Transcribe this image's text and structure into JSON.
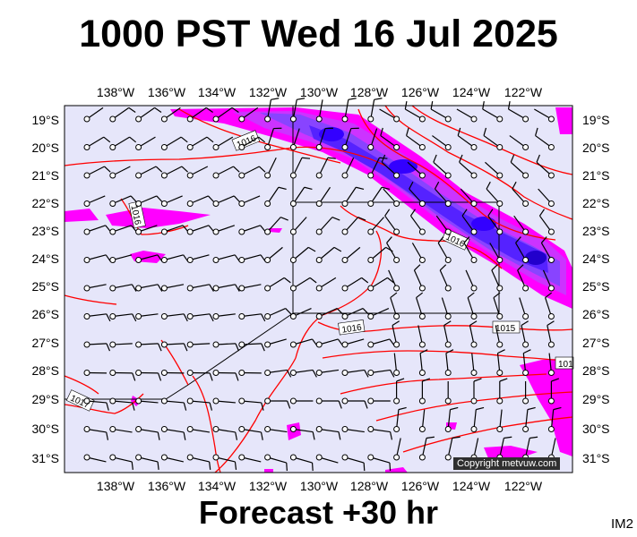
{
  "title": "1000 PST Wed 16 Jul 2025",
  "forecast_label": "Forecast +30 hr",
  "region_code": "IM2",
  "copyright": "Copyright metvuw.com",
  "longitude_ticks": [
    "138°W",
    "136°W",
    "134°W",
    "132°W",
    "130°W",
    "128°W",
    "126°W",
    "124°W",
    "122°W"
  ],
  "latitude_ticks": [
    "19°S",
    "20°S",
    "21°S",
    "22°S",
    "23°S",
    "24°S",
    "25°S",
    "26°S",
    "27°S",
    "28°S",
    "29°S",
    "30°S",
    "31°S"
  ],
  "isobar_labels": [
    "1016",
    "1016",
    "1016",
    "1016",
    "1015",
    "1017",
    "101"
  ],
  "colors": {
    "ocean": "#e6e6fa",
    "isobar": "#ff0000",
    "rain_light": "#ff00ff",
    "rain_medium": "#aa33ff",
    "rain_heavy": "#3300ff",
    "wind_barb": "#000000"
  }
}
